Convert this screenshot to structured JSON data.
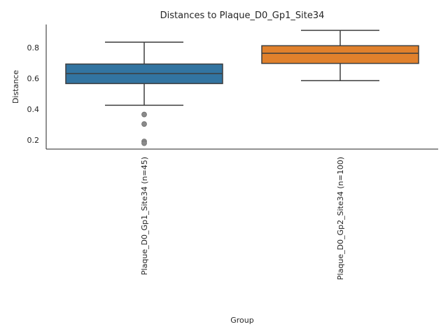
{
  "chart_data": {
    "type": "box",
    "title": "Distances to Plaque_D0_Gp1_Site34",
    "xlabel": "Group",
    "ylabel": "Distance",
    "ylim": [
      0.14,
      0.95
    ],
    "yticks": [
      0.2,
      0.4,
      0.6,
      0.8
    ],
    "ytick_labels": [
      "0.2",
      "0.4",
      "0.6",
      "0.8"
    ],
    "grid": false,
    "categories": [
      "Plaque_D0_Gp1_Site34 (n=45)",
      "Plaque_D0_Gp2_Site34 (n=100)"
    ],
    "boxes": [
      {
        "label": "Plaque_D0_Gp1_Site34 (n=45)",
        "color": "#3274a1",
        "whisker_low": 0.425,
        "q1": 0.566,
        "median": 0.631,
        "q3": 0.693,
        "whisker_high": 0.835,
        "outliers": [
          0.365,
          0.303,
          0.19,
          0.178
        ]
      },
      {
        "label": "Plaque_D0_Gp2_Site34 (n=100)",
        "color": "#e1812c",
        "whisker_low": 0.585,
        "q1": 0.697,
        "median": 0.763,
        "q3": 0.812,
        "whisker_high": 0.912,
        "outliers": []
      }
    ]
  }
}
